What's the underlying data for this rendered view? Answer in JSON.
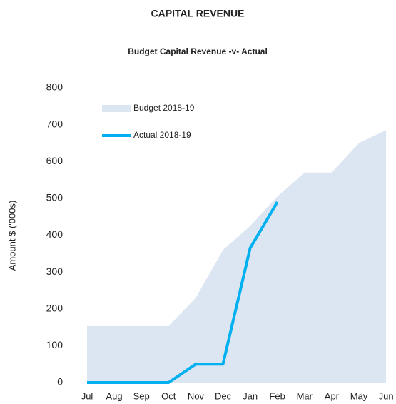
{
  "chart_data": {
    "type": "line",
    "title": "CAPITAL REVENUE",
    "subtitle": "Budget Capital Revenue -v- Actual",
    "y_label": "Amount $ ('000s)",
    "categories": [
      "Jul",
      "Aug",
      "Sep",
      "Oct",
      "Nov",
      "Dec",
      "Jan",
      "Feb",
      "Mar",
      "Apr",
      "May",
      "Jun"
    ],
    "series": [
      {
        "name": "Budget 2018-19",
        "type": "area",
        "color": "#dce6f2",
        "values": [
          153,
          153,
          153,
          153,
          230,
          360,
          425,
          505,
          570,
          570,
          650,
          685
        ]
      },
      {
        "name": "Actual 2018-19",
        "type": "line",
        "color": "#00b0f0",
        "values": [
          0,
          0,
          0,
          0,
          50,
          50,
          365,
          490,
          null,
          null,
          null,
          null
        ]
      }
    ],
    "ylim": [
      0,
      800
    ],
    "yticks": [
      0,
      100,
      200,
      300,
      400,
      500,
      600,
      700,
      800
    ],
    "grid": false
  }
}
